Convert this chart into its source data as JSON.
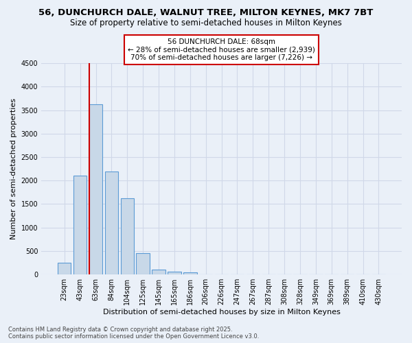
{
  "title_line1": "56, DUNCHURCH DALE, WALNUT TREE, MILTON KEYNES, MK7 7BT",
  "title_line2": "Size of property relative to semi-detached houses in Milton Keynes",
  "xlabel": "Distribution of semi-detached houses by size in Milton Keynes",
  "ylabel": "Number of semi-detached properties",
  "categories": [
    "23sqm",
    "43sqm",
    "63sqm",
    "84sqm",
    "104sqm",
    "125sqm",
    "145sqm",
    "165sqm",
    "186sqm",
    "206sqm",
    "226sqm",
    "247sqm",
    "267sqm",
    "287sqm",
    "308sqm",
    "328sqm",
    "349sqm",
    "369sqm",
    "389sqm",
    "410sqm",
    "430sqm"
  ],
  "values": [
    250,
    2100,
    3620,
    2200,
    1620,
    460,
    110,
    60,
    45,
    0,
    0,
    0,
    0,
    0,
    0,
    0,
    0,
    0,
    0,
    0,
    0
  ],
  "bar_color": "#c8d8e8",
  "bar_edge_color": "#5b9bd5",
  "annotation_text": "56 DUNCHURCH DALE: 68sqm\n← 28% of semi-detached houses are smaller (2,939)\n70% of semi-detached houses are larger (7,226) →",
  "annotation_box_color": "#ffffff",
  "annotation_box_edge_color": "#cc0000",
  "vline_color": "#cc0000",
  "grid_color": "#d0d8e8",
  "background_color": "#eaf0f8",
  "ylim": [
    0,
    4500
  ],
  "yticks": [
    0,
    500,
    1000,
    1500,
    2000,
    2500,
    3000,
    3500,
    4000,
    4500
  ],
  "footer_line1": "Contains HM Land Registry data © Crown copyright and database right 2025.",
  "footer_line2": "Contains public sector information licensed under the Open Government Licence v3.0.",
  "title_fontsize": 9.5,
  "subtitle_fontsize": 8.5,
  "axis_label_fontsize": 8,
  "tick_fontsize": 7,
  "annotation_fontsize": 7.5,
  "footer_fontsize": 6
}
